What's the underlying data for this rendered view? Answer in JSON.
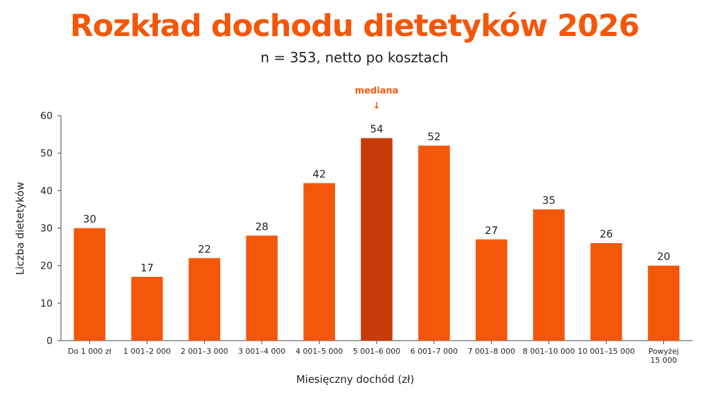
{
  "header": {
    "title": "Rozkład dochodu dietetyków 2026",
    "subtitle": "n = 353, netto po kosztach"
  },
  "chart_data": {
    "type": "bar",
    "title": "Rozkład dochodu dietetyków 2026",
    "subtitle": "n = 353, netto po kosztach",
    "xlabel": "Miesięczny dochód (zł)",
    "ylabel": "Liczba dietetyków",
    "ylim": [
      0,
      60
    ],
    "yticks": [
      0,
      10,
      20,
      30,
      40,
      50,
      60
    ],
    "grid": false,
    "categories": [
      "Do 1 000 zł",
      "1 001–2 000",
      "2 001–3 000",
      "3 001–4 000",
      "4 001–5 000",
      "5 001–6 000",
      "6 001–7 000",
      "7 001–8 000",
      "8 001–10 000",
      "10 001–15 000",
      "Powyżej 15 000"
    ],
    "values": [
      30,
      17,
      22,
      28,
      42,
      54,
      52,
      27,
      35,
      26,
      20
    ],
    "highlight_index": 5,
    "annotation": {
      "text": "mediana",
      "arrow": "↓",
      "category": "5 001–6 000"
    },
    "colors": {
      "bar": "#F4570A",
      "highlight": "#C73A0A",
      "annotation": "#F4570A"
    }
  }
}
